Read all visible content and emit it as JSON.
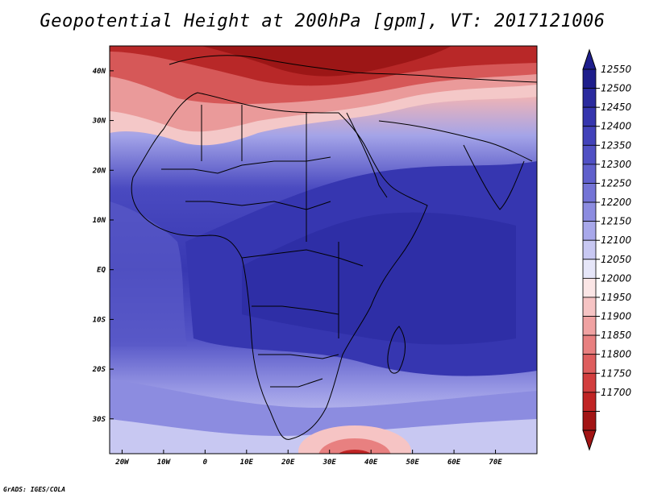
{
  "title": "Geopotential Height at 200hPa [gpm], VT: 2017121006",
  "credit": "GrADS: IGES/COLA",
  "map": {
    "lon_range": [
      -23,
      80
    ],
    "lat_range": [
      -37,
      45
    ],
    "x_ticks": [
      "20W",
      "10W",
      "0",
      "10E",
      "20E",
      "30E",
      "40E",
      "50E",
      "60E",
      "70E"
    ],
    "x_tick_values": [
      -20,
      -10,
      0,
      10,
      20,
      30,
      40,
      50,
      60,
      70
    ],
    "y_ticks": [
      "40N",
      "30N",
      "20N",
      "10N",
      "EQ",
      "10S",
      "20S",
      "30S"
    ],
    "y_tick_values": [
      40,
      30,
      20,
      10,
      0,
      -10,
      -20,
      -30
    ]
  },
  "colorbar": {
    "levels": [
      "12550",
      "12500",
      "12450",
      "12400",
      "12350",
      "12300",
      "12250",
      "12200",
      "12150",
      "12100",
      "12050",
      "12000",
      "11950",
      "11900",
      "11850",
      "11800",
      "11750",
      "11700"
    ],
    "colors": [
      "#1e1e8c",
      "#2a2a9e",
      "#3535ae",
      "#4242ba",
      "#5050c4",
      "#6060cc",
      "#7474d6",
      "#8c8ce0",
      "#a8a8ea",
      "#c8c8f2",
      "#e6e6f8",
      "#fbe6e6",
      "#f6c4c4",
      "#f0a2a2",
      "#e88080",
      "#de5e5e",
      "#d23e3e",
      "#c02424",
      "#a21414"
    ]
  }
}
